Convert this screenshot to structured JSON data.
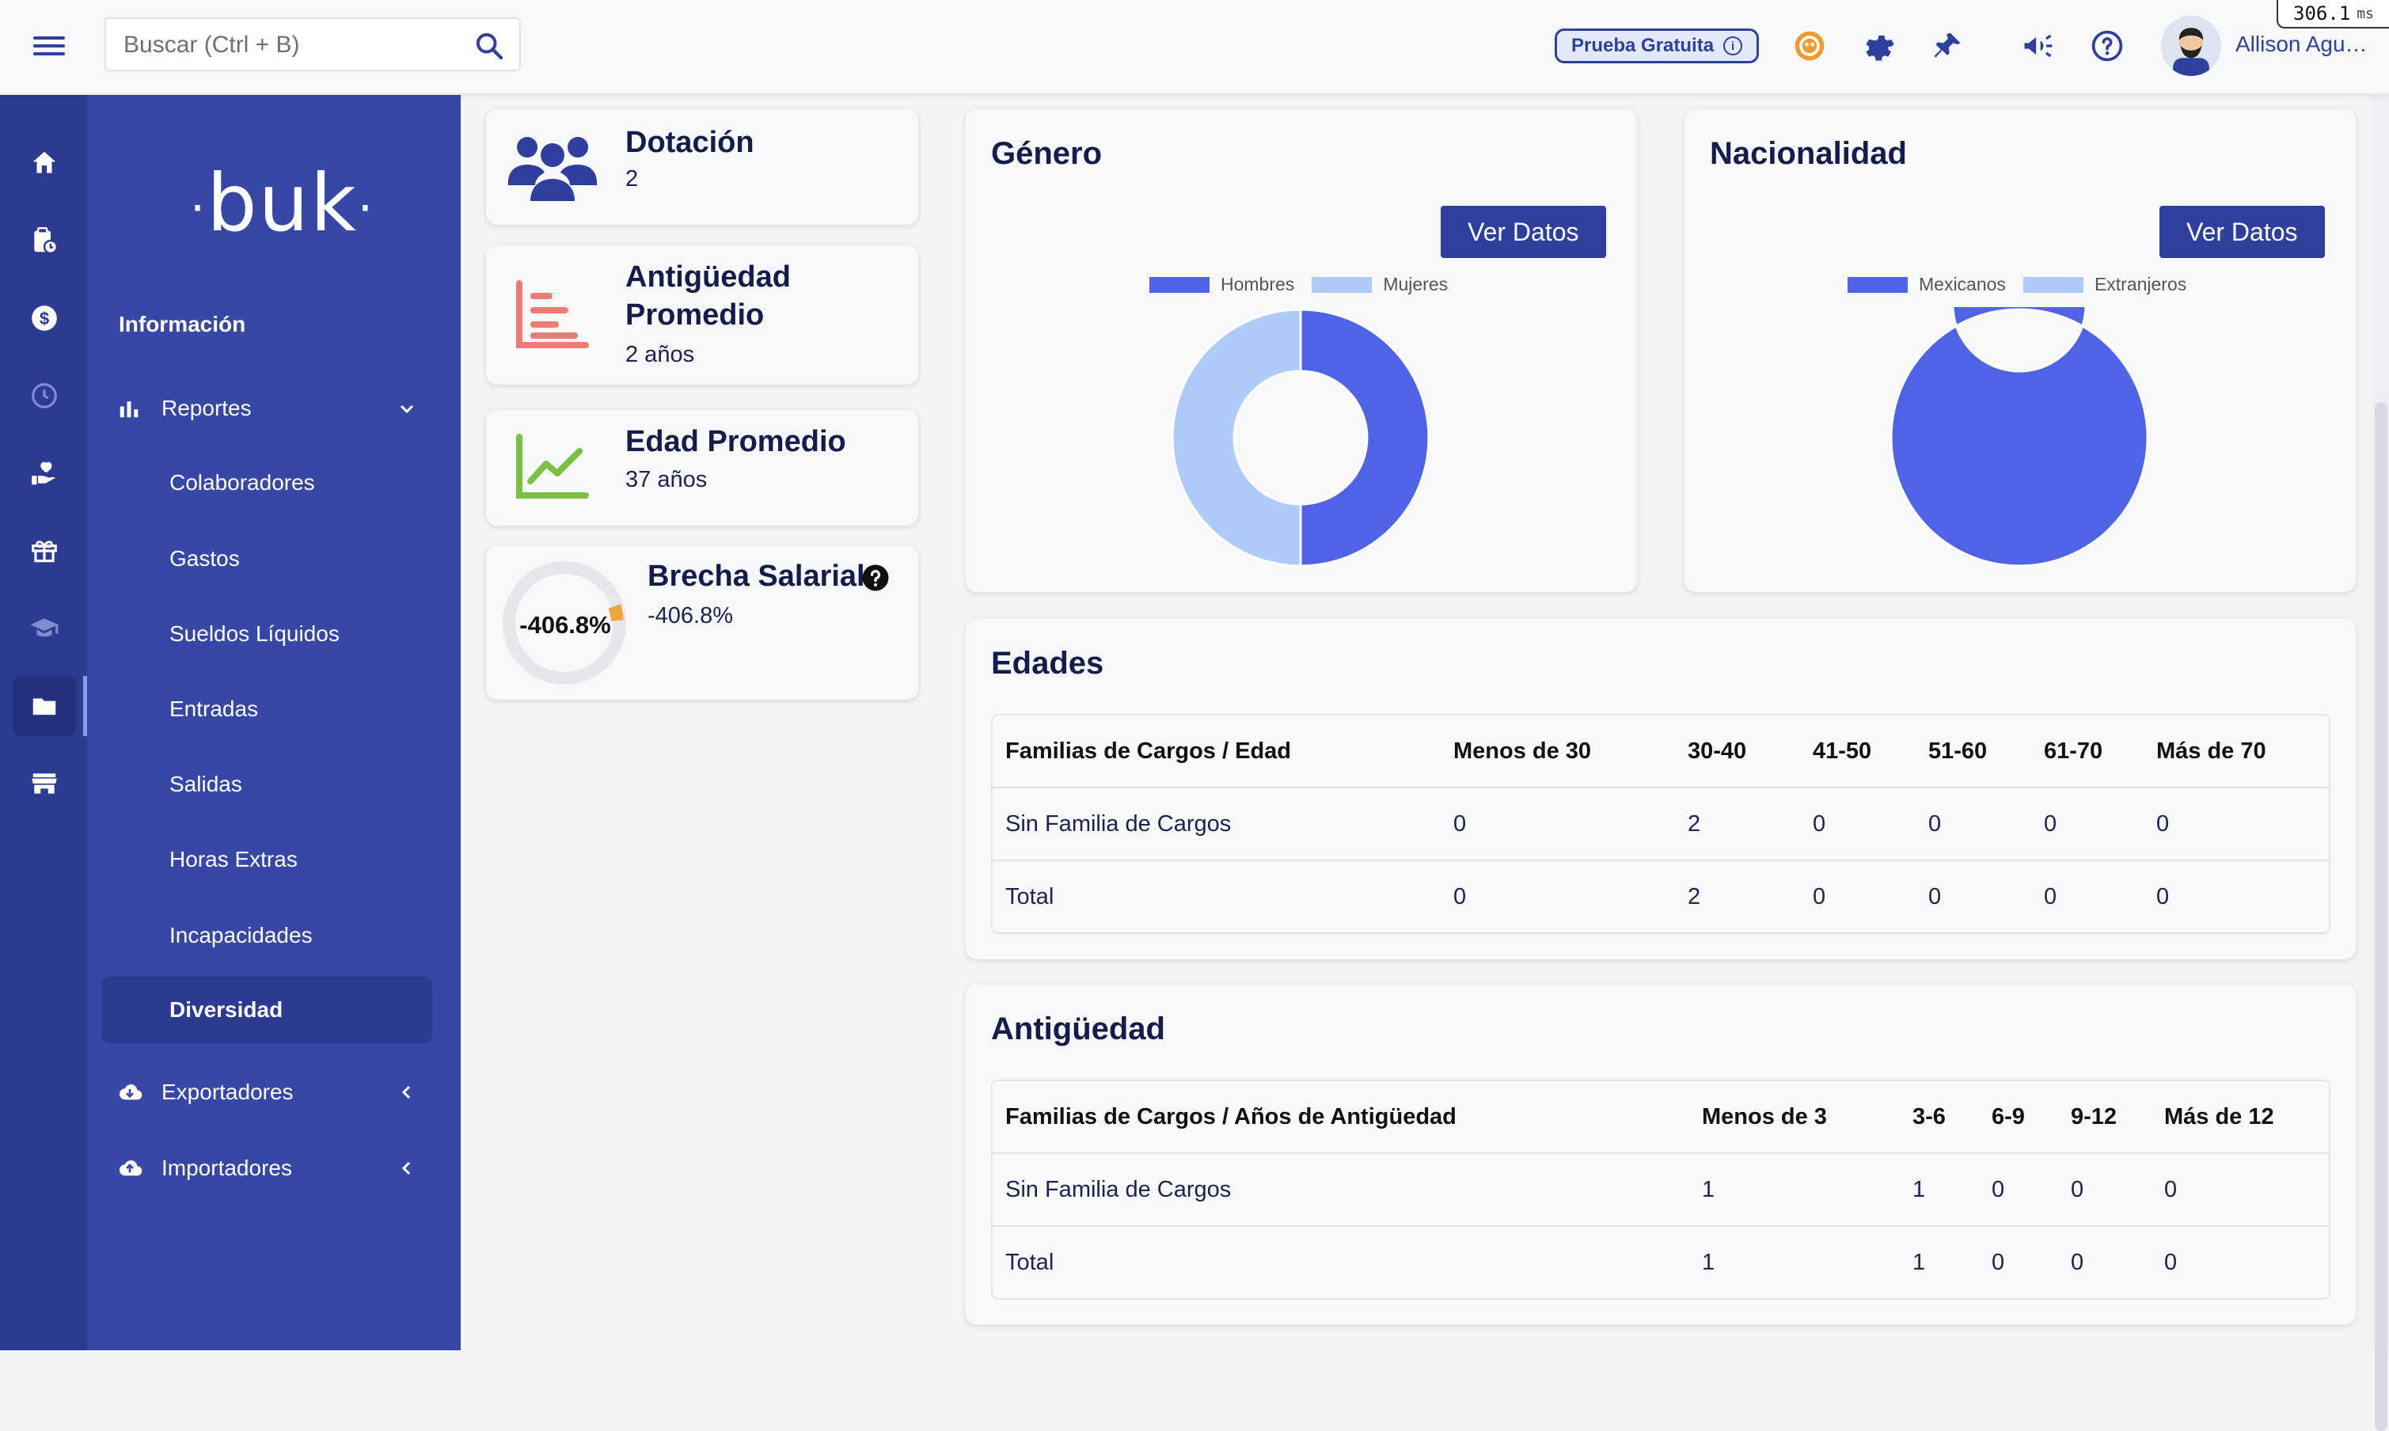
{
  "header": {
    "search_placeholder": "Buscar (Ctrl + B)",
    "trial_label": "Prueba Gratuita",
    "user_name": "Allison Agu…",
    "perf_value": "306.1",
    "perf_unit": "ms"
  },
  "sidebar": {
    "logo": "buk",
    "section_title": "Información",
    "reports_label": "Reportes",
    "report_items": [
      "Colaboradores",
      "Gastos",
      "Sueldos Líquidos",
      "Entradas",
      "Salidas",
      "Horas Extras",
      "Incapacidades",
      "Diversidad"
    ],
    "active_item": "Diversidad",
    "exporters_label": "Exportadores",
    "importers_label": "Importadores"
  },
  "kpis": {
    "dotacion": {
      "title": "Dotación",
      "value": "2"
    },
    "antiguedad": {
      "title_line1": "Antigüedad",
      "title_line2": "Promedio",
      "value": "2 años"
    },
    "edad": {
      "title": "Edad Promedio",
      "value": "37 años"
    },
    "brecha": {
      "title": "Brecha Salarial",
      "value": "-406.8%",
      "gauge_label": "-406.8%"
    }
  },
  "genero": {
    "title": "Género",
    "button": "Ver Datos",
    "legend": [
      {
        "name": "Hombres",
        "color": "#4f63e7"
      },
      {
        "name": "Mujeres",
        "color": "#aecbfa"
      }
    ]
  },
  "nacionalidad": {
    "title": "Nacionalidad",
    "button": "Ver Datos",
    "legend": [
      {
        "name": "Mexicanos",
        "color": "#4f63e7"
      },
      {
        "name": "Extranjeros",
        "color": "#aecbfa"
      }
    ]
  },
  "chart_data": [
    {
      "type": "pie",
      "variant": "donut",
      "categories": [
        "Hombres",
        "Mujeres"
      ],
      "values": [
        1,
        1
      ],
      "colors": [
        "#4f63e7",
        "#aecbfa"
      ]
    },
    {
      "type": "pie",
      "variant": "donut",
      "categories": [
        "Mexicanos",
        "Extranjeros"
      ],
      "values": [
        2,
        0
      ],
      "colors": [
        "#4f63e7",
        "#aecbfa"
      ]
    }
  ],
  "edades": {
    "title": "Edades",
    "headers": [
      "Familias de Cargos / Edad",
      "Menos de 30",
      "30-40",
      "41-50",
      "51-60",
      "61-70",
      "Más de 70"
    ],
    "rows": [
      [
        "Sin Familia de Cargos",
        "0",
        "2",
        "0",
        "0",
        "0",
        "0"
      ],
      [
        "Total",
        "0",
        "2",
        "0",
        "0",
        "0",
        "0"
      ]
    ]
  },
  "antiguedad_table": {
    "title": "Antigüedad",
    "headers": [
      "Familias de Cargos / Años de Antigüedad",
      "Menos de 3",
      "3-6",
      "6-9",
      "9-12",
      "Más de 12"
    ],
    "rows": [
      [
        "Sin Familia de Cargos",
        "1",
        "1",
        "0",
        "0",
        "0"
      ],
      [
        "Total",
        "1",
        "1",
        "0",
        "0",
        "0"
      ]
    ]
  }
}
